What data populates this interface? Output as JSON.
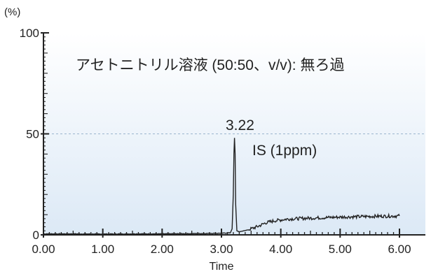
{
  "chart_data": {
    "type": "line",
    "title": "アセトニトリル溶液 (50:50、v/v): 無ろ過",
    "xlabel": "Time",
    "ylabel": "(%)",
    "xlim": [
      0,
      6
    ],
    "ylim": [
      0,
      100
    ],
    "x_ticks": [
      "0.00",
      "1.00",
      "2.00",
      "3.00",
      "4.00",
      "5.00",
      "6.00"
    ],
    "y_ticks": [
      "0",
      "50",
      "100"
    ],
    "reference_line": {
      "y": 50,
      "style": "dashed"
    },
    "annotations": [
      {
        "text": "3.22",
        "x": 3.22,
        "y": 50
      },
      {
        "text": "IS (1ppm)",
        "x": 3.4,
        "y": 40
      }
    ],
    "series": [
      {
        "x": [
          0.0,
          0.5,
          1.0,
          1.5,
          2.0,
          2.5,
          3.0,
          3.15,
          3.18,
          3.2,
          3.21,
          3.22,
          3.23,
          3.24,
          3.26,
          3.3,
          3.45,
          3.6,
          3.75,
          3.9,
          4.1,
          4.4,
          4.7,
          5.0,
          5.3,
          5.6,
          5.9,
          6.0
        ],
        "y": [
          0.5,
          0.5,
          0.4,
          0.5,
          0.5,
          0.6,
          0.8,
          1.0,
          3.0,
          20.0,
          40.0,
          48.0,
          40.0,
          15.0,
          2.0,
          1.5,
          2.5,
          4.0,
          6.0,
          7.0,
          7.8,
          8.2,
          8.5,
          8.8,
          9.0,
          9.2,
          9.3,
          9.4
        ]
      }
    ]
  }
}
